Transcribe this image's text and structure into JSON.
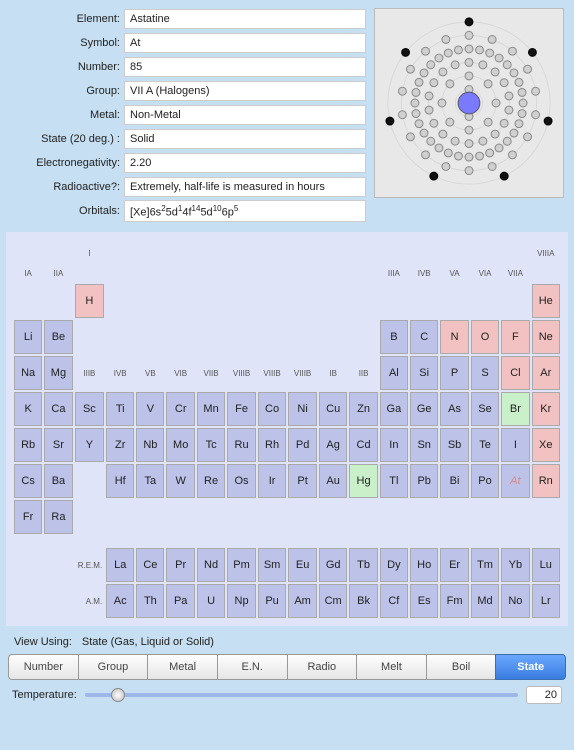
{
  "props": {
    "labels": {
      "element": "Element:",
      "symbol": "Symbol:",
      "number": "Number:",
      "group": "Group:",
      "metal": "Metal:",
      "state": "State (20 deg.) :",
      "eneg": "Electronegativity:",
      "radio": "Radioactive?:",
      "orbitals": "Orbitals:"
    },
    "values": {
      "element": "Astatine",
      "symbol": "At",
      "number": "85",
      "group": "VII A (Halogens)",
      "metal": "Non-Metal",
      "state": "Solid",
      "eneg": "2.20",
      "radio": "Extremely, half-life is measured in hours"
    },
    "orbitals_html": "[Xe]6s<sup>2</sup>5d<sup>1</sup>4f<sup>14</sup>5d<sup>10</sup>6p<sup>5</sup>"
  },
  "atom": {
    "shells": [
      2,
      8,
      18,
      32,
      18,
      7
    ],
    "nucleus_color": "#7a7aff",
    "electron_fill": "#d0d0d0",
    "electron_stroke": "#888",
    "outer_fill": "#111",
    "ring_color": "#d8d8d8",
    "bg": "#e8e8e8"
  },
  "group_headers": {
    "top_left": "I",
    "top_right": "VIIIA",
    "row2": [
      "IA",
      "IIA",
      "",
      "",
      "",
      "",
      "",
      "",
      "",
      "",
      "",
      "",
      "IIIA",
      "IVB",
      "VA",
      "VIA",
      "VIIA",
      ""
    ],
    "row4": [
      "",
      "",
      "IIIB",
      "IVB",
      "VB",
      "VIB",
      "VIIB",
      "VIIIB",
      "VIIIB",
      "VIIIB",
      "IB",
      "IIB",
      "",
      "",
      "",
      "",
      "",
      ""
    ]
  },
  "elements": [
    [
      "",
      "",
      "H",
      "",
      "",
      "",
      "",
      "",
      "",
      "",
      "",
      "",
      "",
      "",
      "",
      "",
      "",
      "He"
    ],
    [
      "Li",
      "Be",
      "",
      "",
      "",
      "",
      "",
      "",
      "",
      "",
      "",
      "",
      "B",
      "C",
      "N",
      "O",
      "F",
      "Ne"
    ],
    [
      "Na",
      "Mg",
      "",
      "",
      "",
      "",
      "",
      "",
      "",
      "",
      "",
      "",
      "Al",
      "Si",
      "P",
      "S",
      "Cl",
      "Ar"
    ],
    [
      "K",
      "Ca",
      "Sc",
      "Ti",
      "V",
      "Cr",
      "Mn",
      "Fe",
      "Co",
      "Ni",
      "Cu",
      "Zn",
      "Ga",
      "Ge",
      "As",
      "Se",
      "Br",
      "Kr"
    ],
    [
      "Rb",
      "Sr",
      "Y",
      "Zr",
      "Nb",
      "Mo",
      "Tc",
      "Ru",
      "Rh",
      "Pd",
      "Ag",
      "Cd",
      "In",
      "Sn",
      "Sb",
      "Te",
      "I",
      "Xe"
    ],
    [
      "Cs",
      "Ba",
      "",
      "Hf",
      "Ta",
      "W",
      "Re",
      "Os",
      "Ir",
      "Pt",
      "Au",
      "Hg",
      "Tl",
      "Pb",
      "Bi",
      "Po",
      "At",
      "Rn"
    ],
    [
      "Fr",
      "Ra",
      "",
      "",
      "",
      "",
      "",
      "",
      "",
      "",
      "",
      "",
      "",
      "",
      "",
      "",
      "",
      ""
    ]
  ],
  "states": [
    [
      "",
      "",
      "g",
      "",
      "",
      "",
      "",
      "",
      "",
      "",
      "",
      "",
      "",
      "",
      "",
      "",
      "",
      "g"
    ],
    [
      "s",
      "s",
      "",
      "",
      "",
      "",
      "",
      "",
      "",
      "",
      "",
      "",
      "s",
      "s",
      "g",
      "g",
      "g",
      "g"
    ],
    [
      "s",
      "s",
      "",
      "",
      "",
      "",
      "",
      "",
      "",
      "",
      "",
      "",
      "s",
      "s",
      "s",
      "s",
      "g",
      "g"
    ],
    [
      "s",
      "s",
      "s",
      "s",
      "s",
      "s",
      "s",
      "s",
      "s",
      "s",
      "s",
      "s",
      "s",
      "s",
      "s",
      "s",
      "l",
      "g"
    ],
    [
      "s",
      "s",
      "s",
      "s",
      "s",
      "s",
      "s",
      "s",
      "s",
      "s",
      "s",
      "s",
      "s",
      "s",
      "s",
      "s",
      "s",
      "g"
    ],
    [
      "s",
      "s",
      "",
      "s",
      "s",
      "s",
      "s",
      "s",
      "s",
      "s",
      "s",
      "l",
      "s",
      "s",
      "s",
      "s",
      "s",
      "g"
    ],
    [
      "s",
      "s",
      "",
      "",
      "",
      "",
      "",
      "",
      "",
      "",
      "",
      "",
      "",
      "",
      "",
      "",
      "",
      ""
    ]
  ],
  "fblock_labels": {
    "lan": "R.E.M.",
    "act": "A.M."
  },
  "fblock": [
    [
      "La",
      "Ce",
      "Pr",
      "Nd",
      "Pm",
      "Sm",
      "Eu",
      "Gd",
      "Tb",
      "Dy",
      "Ho",
      "Er",
      "Tm",
      "Yb",
      "Lu"
    ],
    [
      "Ac",
      "Th",
      "Pa",
      "U",
      "Np",
      "Pu",
      "Am",
      "Cm",
      "Bk",
      "Cf",
      "Es",
      "Fm",
      "Md",
      "No",
      "Lr"
    ]
  ],
  "selected": "At",
  "view": {
    "label": "View Using:",
    "value": "State (Gas, Liquid or Solid)"
  },
  "tabs": [
    "Number",
    "Group",
    "Metal",
    "E.N.",
    "Radio",
    "Melt",
    "Boil",
    "State"
  ],
  "tab_active": "State",
  "temp": {
    "label": "Temperature:",
    "value": "20"
  },
  "colors": {
    "bg": "#c6dff2",
    "panel": "#e0e4f8",
    "solid": "#bcc2e8",
    "liquid": "#c9f0c9",
    "gas": "#f2c2c2",
    "tab_active": "#3a7de0"
  }
}
